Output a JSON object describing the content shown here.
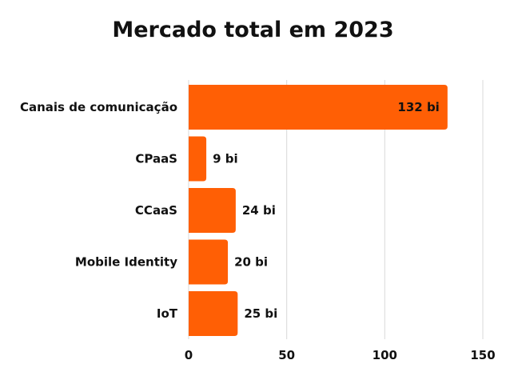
{
  "chart_data": {
    "type": "bar",
    "orientation": "horizontal",
    "title": "Mercado total em 2023",
    "categories": [
      "Canais de comunicação",
      "CPaaS",
      "CCaaS",
      "Mobile Identity",
      "IoT"
    ],
    "values": [
      132,
      9,
      24,
      20,
      25
    ],
    "data_labels": [
      "132 bi",
      "9 bi",
      "24 bi",
      "20 bi",
      "25 bi"
    ],
    "xlim": [
      0,
      150
    ],
    "xticks": [
      "0",
      "50",
      "100",
      "150"
    ],
    "xtick_values": [
      0,
      50,
      100,
      150
    ],
    "grid": "vertical",
    "legend": "none",
    "bar_color": "#FF5F05",
    "grid_color": "#D9D9D9"
  }
}
